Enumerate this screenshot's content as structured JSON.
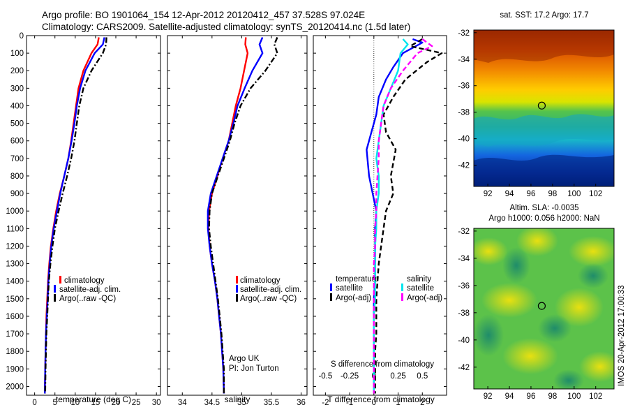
{
  "header": {
    "line1": "Argo profile: BO 1901064_154 12-Apr-2012 20120412_457 37.528S 97.024E",
    "line2": "Climatology: CARS2009. Satellite-adjusted climatology: synTS_20120414.nc (1.5d later)"
  },
  "credit": "Argo UK",
  "pi": "PI: Jon Turton",
  "side_stamp": "IMOS 20-Apr-2012 17:00:33",
  "colors": {
    "climatology": "#ff0000",
    "satellite": "#0000ff",
    "argo": "#000000",
    "sal_satellite": "#00e5ee",
    "sal_argo": "#ff00ff"
  },
  "chart_data": [
    {
      "type": "line",
      "xlabel": "temperature (deg C)",
      "xlim": [
        -2,
        31
      ],
      "xticks": [
        0,
        5,
        10,
        15,
        20,
        25,
        30
      ],
      "ylim": [
        0,
        2050
      ],
      "yticks": [
        0,
        100,
        200,
        300,
        400,
        500,
        600,
        700,
        800,
        900,
        1000,
        1100,
        1200,
        1300,
        1400,
        1500,
        1600,
        1700,
        1800,
        1900,
        2000
      ],
      "legend": [
        "climatology",
        "satellite-adj. clim.",
        "Argo(..raw -QC)"
      ],
      "legend_placement": "lower-center",
      "series": [
        {
          "name": "climatology",
          "style": "solid",
          "color": "#ff0000",
          "x": [
            15.8,
            15.5,
            14.0,
            12.0,
            10.8,
            10.2,
            9.6,
            9.0,
            8.3,
            7.3,
            6.2,
            5.3,
            4.6,
            4.0,
            3.6,
            3.3,
            3.1,
            2.9,
            2.8,
            2.7,
            2.6,
            2.5
          ],
          "y": [
            10,
            50,
            100,
            200,
            300,
            400,
            500,
            600,
            700,
            800,
            900,
            1000,
            1100,
            1200,
            1300,
            1400,
            1500,
            1600,
            1700,
            1800,
            1900,
            2040
          ]
        },
        {
          "name": "satellite-adj. clim.",
          "style": "solid",
          "color": "#0000ff",
          "x": [
            17.2,
            16.8,
            14.8,
            12.5,
            11.2,
            10.4,
            9.8,
            9.1,
            8.3,
            7.3,
            6.3,
            5.5,
            4.7,
            4.1,
            3.7,
            3.4,
            3.2,
            3.0,
            2.8,
            2.7,
            2.6,
            2.5
          ],
          "y": [
            10,
            50,
            100,
            200,
            300,
            400,
            500,
            600,
            700,
            800,
            900,
            1000,
            1100,
            1200,
            1300,
            1400,
            1500,
            1600,
            1700,
            1800,
            1900,
            2040
          ]
        },
        {
          "name": "Argo(..raw -QC)",
          "style": "dash-dot",
          "color": "#000000",
          "x": [
            17.7,
            17.6,
            16.8,
            14.0,
            12.0,
            11.0,
            10.4,
            9.8,
            9.0,
            8.0,
            6.9,
            5.9,
            5.0,
            4.4,
            3.9,
            3.5,
            3.3,
            3.1,
            2.9,
            2.8,
            2.7,
            2.6
          ],
          "y": [
            10,
            50,
            100,
            200,
            300,
            400,
            500,
            600,
            700,
            800,
            900,
            1000,
            1100,
            1200,
            1300,
            1400,
            1500,
            1600,
            1700,
            1800,
            1900,
            2040
          ]
        }
      ]
    },
    {
      "type": "line",
      "xlabel": "salinity",
      "xlim": [
        33.75,
        36.1
      ],
      "xticks": [
        34,
        34.5,
        35,
        35.5,
        36
      ],
      "ylim": [
        0,
        2050
      ],
      "legend": [
        "climatology",
        "satellite-adj. clim.",
        "Argo(..raw -QC)"
      ],
      "legend_placement": "lower-right",
      "series": [
        {
          "name": "climatology",
          "style": "solid",
          "color": "#ff0000",
          "x": [
            35.07,
            35.06,
            35.1,
            35.04,
            34.98,
            34.9,
            34.84,
            34.78,
            34.68,
            34.59,
            34.5,
            34.45,
            34.44,
            34.46,
            34.5,
            34.55,
            34.59,
            34.62,
            34.65,
            34.67,
            34.69,
            34.7
          ],
          "y": [
            10,
            50,
            100,
            200,
            300,
            400,
            500,
            600,
            700,
            800,
            900,
            1000,
            1100,
            1200,
            1300,
            1400,
            1500,
            1600,
            1700,
            1800,
            1900,
            2040
          ]
        },
        {
          "name": "satellite-adj. clim.",
          "style": "solid",
          "color": "#0000ff",
          "x": [
            35.35,
            35.3,
            35.35,
            35.18,
            35.05,
            34.93,
            34.86,
            34.78,
            34.68,
            34.58,
            34.48,
            34.43,
            34.43,
            34.46,
            34.5,
            34.55,
            34.59,
            34.62,
            34.65,
            34.67,
            34.69,
            34.7
          ],
          "y": [
            10,
            50,
            100,
            200,
            300,
            400,
            500,
            600,
            700,
            800,
            900,
            1000,
            1100,
            1200,
            1300,
            1400,
            1500,
            1600,
            1700,
            1800,
            1900,
            2040
          ]
        },
        {
          "name": "Argo(..raw -QC)",
          "style": "dash-dot",
          "color": "#000000",
          "x": [
            35.6,
            35.55,
            35.6,
            35.4,
            35.15,
            34.98,
            34.88,
            34.8,
            34.7,
            34.6,
            34.5,
            34.46,
            34.45,
            34.48,
            34.52,
            34.56,
            34.6,
            34.63,
            34.66,
            34.68,
            34.7,
            34.7
          ],
          "y": [
            10,
            50,
            100,
            200,
            300,
            400,
            500,
            600,
            700,
            800,
            900,
            1000,
            1100,
            1200,
            1300,
            1400,
            1500,
            1600,
            1700,
            1800,
            1900,
            2040
          ]
        }
      ]
    },
    {
      "type": "line",
      "xlabel": "T difference from climatology",
      "xlabel_top": "S difference from climatology",
      "xlim": [
        -2.5,
        3.0
      ],
      "xticks": [
        -2,
        -1,
        0,
        1,
        2
      ],
      "xticks_top": [
        "-0.5",
        "-0.25",
        "0",
        "0.25",
        "0.5"
      ],
      "xticks_top_pos": [
        -2,
        -1,
        0,
        1,
        2
      ],
      "ylim": [
        0,
        2050
      ],
      "legend_titles": [
        "temperature",
        "salinity"
      ],
      "legend": [
        "satellite",
        "Argo(-adj)",
        "satellite",
        "Argo(-adj)"
      ],
      "legend_placement": "lower-center",
      "series": [
        {
          "name": "satellite",
          "group": "temperature",
          "style": "solid",
          "color": "#0000ff",
          "x": [
            1.6,
            2.0,
            1.2,
            0.8,
            0.5,
            0.2,
            0.1,
            -0.1,
            -0.3,
            -0.2,
            -0.05,
            0.1,
            0.05,
            0.05,
            0.05,
            0.05,
            0.0,
            0.0,
            0.0,
            0.0,
            0.0,
            0.0
          ],
          "y": [
            20,
            40,
            100,
            180,
            250,
            350,
            450,
            550,
            650,
            800,
            900,
            1000,
            1100,
            1200,
            1300,
            1400,
            1500,
            1600,
            1700,
            1800,
            1900,
            2040
          ]
        },
        {
          "name": "Argo(-adj)",
          "group": "temperature",
          "style": "dashed",
          "color": "#000000",
          "x": [
            2.0,
            1.5,
            2.8,
            2.2,
            1.3,
            0.8,
            0.4,
            0.5,
            0.9,
            0.7,
            0.8,
            0.5,
            0.4,
            0.3,
            0.2,
            0.15,
            0.1,
            0.1,
            0.1,
            0.05,
            0.05,
            0.05
          ],
          "y": [
            20,
            60,
            100,
            150,
            250,
            350,
            450,
            550,
            650,
            800,
            900,
            1000,
            1100,
            1200,
            1300,
            1400,
            1500,
            1600,
            1700,
            1800,
            1900,
            2040
          ]
        },
        {
          "name": "satellite",
          "group": "salinity",
          "style": "solid",
          "color": "#00e5ee",
          "x": [
            1.2,
            1.4,
            1.1,
            1.0,
            0.7,
            0.4,
            0.3,
            0.2,
            0.1,
            0.2,
            0.2,
            0.1,
            0.1,
            0.05,
            0.05,
            0.05,
            0.05,
            0.0,
            0.0,
            0.0,
            0.0,
            0.0
          ],
          "y": [
            20,
            50,
            100,
            200,
            300,
            400,
            500,
            600,
            700,
            800,
            900,
            1000,
            1100,
            1200,
            1300,
            1400,
            1500,
            1600,
            1700,
            1800,
            1900,
            2040
          ]
        },
        {
          "name": "Argo(-adj)",
          "group": "salinity",
          "style": "dashed",
          "color": "#ff00ff",
          "x": [
            2.0,
            2.4,
            1.8,
            1.2,
            0.7,
            0.4,
            0.3,
            0.2,
            0.2,
            0.15,
            0.1,
            0.1,
            0.05,
            0.05,
            0.0,
            0.0,
            0.0,
            0.0,
            0.0,
            0.0,
            0.0,
            0.0
          ],
          "y": [
            20,
            60,
            100,
            200,
            300,
            400,
            500,
            600,
            700,
            800,
            900,
            1000,
            1100,
            1200,
            1300,
            1400,
            1500,
            1600,
            1700,
            1800,
            1900,
            2040
          ]
        }
      ]
    },
    {
      "type": "heatmap",
      "title": "sat. SST: 17.2  Argo: 17.7",
      "xlim": [
        90.7,
        103.7
      ],
      "ylim": [
        -43.6,
        -31.8
      ],
      "xticks": [
        92,
        94,
        96,
        98,
        100,
        102
      ],
      "yticks": [
        -32,
        -34,
        -36,
        -38,
        -40,
        -42
      ],
      "marker": {
        "lon": 97.0,
        "lat": -37.5
      }
    },
    {
      "type": "heatmap",
      "title_line1": "Altim. SLA: -0.0035",
      "title_line2": "Argo h1000: 0.056 h2000: NaN",
      "xlim": [
        90.7,
        103.7
      ],
      "ylim": [
        -43.6,
        -31.8
      ],
      "xticks": [
        92,
        94,
        96,
        98,
        100,
        102
      ],
      "yticks": [
        -32,
        -34,
        -36,
        -38,
        -40,
        -42
      ],
      "marker": {
        "lon": 97.0,
        "lat": -37.5
      }
    }
  ]
}
